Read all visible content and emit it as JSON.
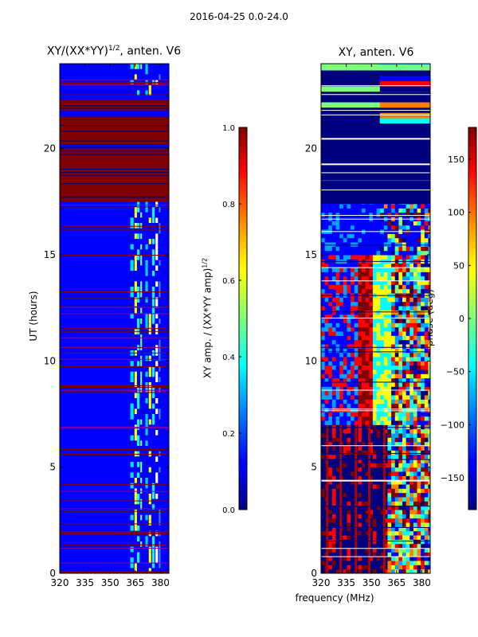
{
  "suptitle": "2016-04-25 0.0-24.0",
  "chart_data": [
    {
      "type": "heatmap",
      "title_base": "XY/(XX*YY)",
      "title_exp": "1/2",
      "title_suffix": ", anten. V6",
      "xlabel": "",
      "ylabel": "UT (hours)",
      "xlim": [
        320,
        385
      ],
      "ylim": [
        0,
        24
      ],
      "xticks": [
        "320",
        "335",
        "350",
        "365",
        "380"
      ],
      "yticks": [
        "0",
        "5",
        "10",
        "15",
        "20"
      ],
      "colorbar": {
        "label_base": "XY amp. / (XX*YY amp)",
        "label_exp": "1/2",
        "vmin": 0.0,
        "vmax": 1.0,
        "ticks": [
          "0.0",
          "0.2",
          "0.4",
          "0.6",
          "0.8",
          "1.0"
        ]
      },
      "saturated_bands_hours": [
        [
          17.5,
          20.0
        ],
        [
          20.2,
          21.5
        ],
        [
          21.8,
          22.3
        ],
        [
          0.0,
          0.1
        ]
      ]
    },
    {
      "type": "heatmap",
      "title": "XY, anten. V6",
      "xlabel": "frequency (MHz)",
      "ylabel": "",
      "xlim": [
        320,
        385
      ],
      "ylim": [
        0,
        24
      ],
      "xticks": [
        "320",
        "335",
        "350",
        "365",
        "380"
      ],
      "yticks": [
        "0",
        "5",
        "10",
        "15",
        "20"
      ],
      "colorbar": {
        "label": "phase (deg)",
        "vmin": -180,
        "vmax": 180,
        "ticks": [
          "−150",
          "−100",
          "−50",
          "0",
          "50",
          "100",
          "150"
        ]
      },
      "low_phase_band_hours": [
        17.4,
        21.2
      ]
    }
  ],
  "colors": {
    "dark_blue": "#00007f",
    "blue": "#0000ff",
    "dark_red": "#7f0000",
    "red": "#ff0000",
    "yellow": "#ffff00",
    "cyan": "#00ffff"
  }
}
